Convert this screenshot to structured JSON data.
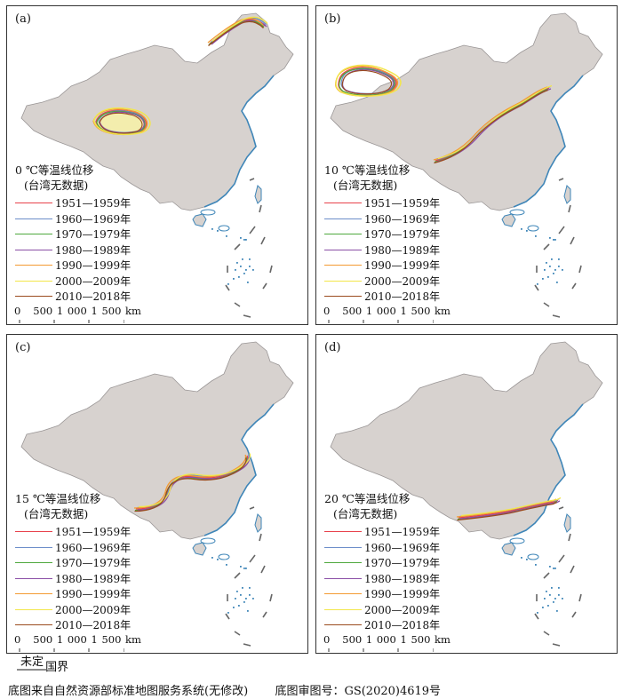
{
  "panels": [
    {
      "id": "a",
      "label": "(a)",
      "title_line1": "0 ℃等温线位移",
      "title_line2": "(台湾无数据)"
    },
    {
      "id": "b",
      "label": "(b)",
      "title_line1": "10 ℃等温线位移",
      "title_line2": "(台湾无数据)"
    },
    {
      "id": "c",
      "label": "(c)",
      "title_line1": "15 ℃等温线位移",
      "title_line2": "(台湾无数据)"
    },
    {
      "id": "d",
      "label": "(d)",
      "title_line1": "20 ℃等温线位移",
      "title_line2": "(台湾无数据)"
    }
  ],
  "legend": [
    {
      "label": "1951—1959年",
      "color": "#e8414b"
    },
    {
      "label": "1960—1969年",
      "color": "#6c8ec9"
    },
    {
      "label": "1970—1979年",
      "color": "#4fa83d"
    },
    {
      "label": "1980—1989年",
      "color": "#8a4fa6"
    },
    {
      "label": "1990—1999年",
      "color": "#f39a32"
    },
    {
      "label": "2000—2009年",
      "color": "#f2e64a"
    },
    {
      "label": "2010—2018年",
      "color": "#9a4b1e"
    }
  ],
  "scale": {
    "text": "0   500 1 000 1 500 km"
  },
  "footer": {
    "boundary_label_top": "未定",
    "boundary_label_right": "国界",
    "source": "底图来自自然资源部标准地图服务系统(无修改)",
    "review_no": "底图审图号：GS(2020)4619号"
  },
  "style": {
    "land_fill": "#d7d2cf",
    "land_stroke": "#9a9696",
    "coast_color": "#3f86b8",
    "boundary_dash": "#666666"
  }
}
